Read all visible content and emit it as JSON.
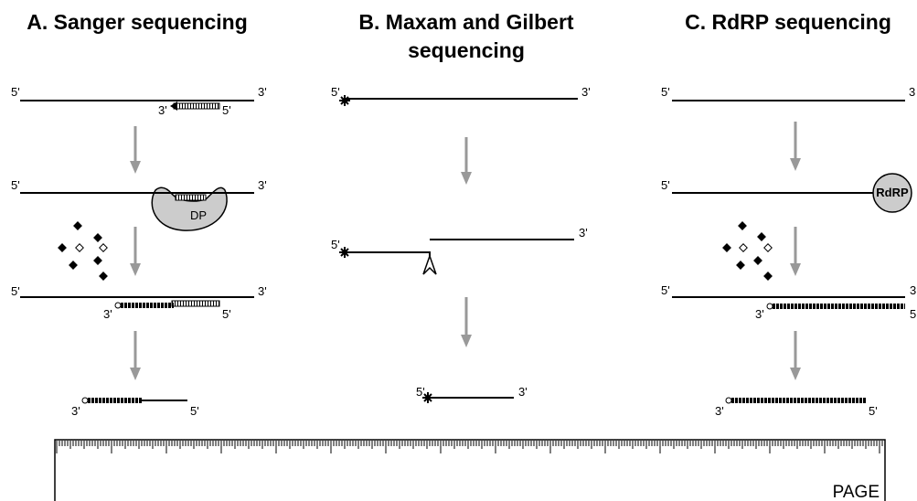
{
  "panels": [
    {
      "title": [
        "A. Sanger sequencing"
      ],
      "labels": [
        "5'",
        "3'",
        "3'",
        "5'",
        "5'",
        "3'",
        "DP",
        "5'",
        "3'",
        "3'",
        "5'",
        "3'",
        "5'"
      ]
    },
    {
      "title": [
        "B. Maxam and Gilbert",
        "sequencing"
      ],
      "labels": [
        "5'",
        "3'",
        "3'",
        "5'",
        "5'",
        "3'"
      ]
    },
    {
      "title": [
        "C. RdRP sequencing"
      ],
      "labels": [
        "5'",
        "3",
        "5'",
        "RdRP",
        "5'",
        "3",
        "3'",
        "5",
        "3'",
        "5'"
      ]
    }
  ],
  "gel": {
    "label": "PAGE"
  }
}
